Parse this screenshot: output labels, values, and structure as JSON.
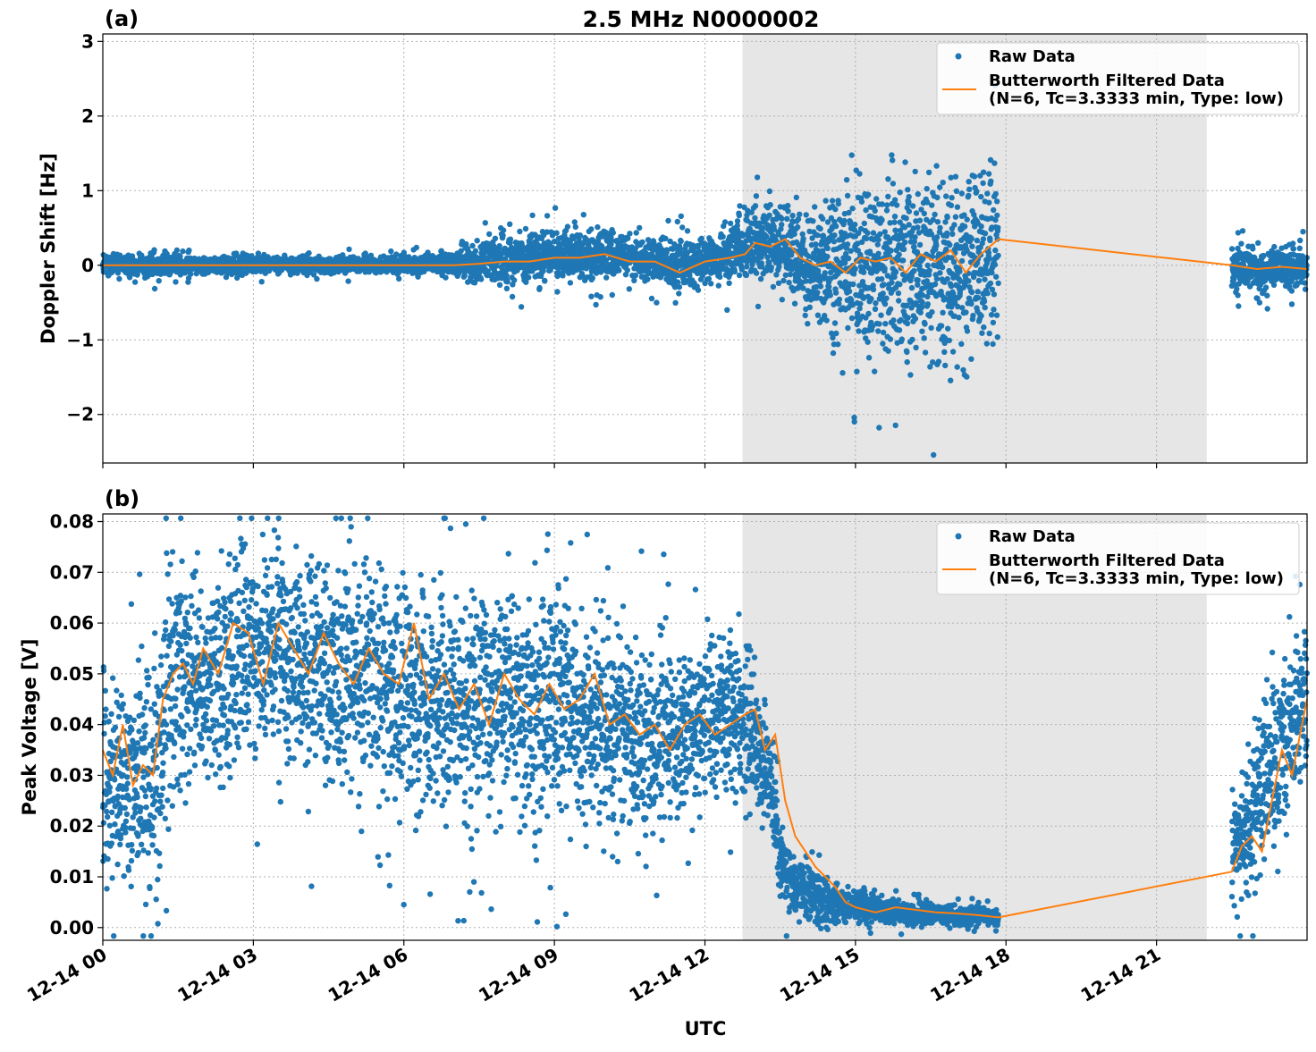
{
  "figure": {
    "title": "2.5 MHz N0000002",
    "xlabel": "UTC",
    "x_tick_labels": [
      "12-14 00",
      "12-14 03",
      "12-14 06",
      "12-14 09",
      "12-14 12",
      "12-14 15",
      "12-14 18",
      "12-14 21"
    ]
  },
  "legend": {
    "raw_label": "Raw Data",
    "filt_label_1": "Butterworth Filtered Data",
    "filt_label_2": "(N=6, Tc=3.3333 min, Type: low)"
  },
  "colors": {
    "raw": "#1f77b4",
    "filtered": "#ff7f0e",
    "shade": "#e6e6e6",
    "grid": "#b0b0b0"
  },
  "chart_data": [
    {
      "panel_label": "(a)",
      "type": "scatter",
      "title": "2.5 MHz N0000002",
      "ylabel": "Doppler Shift [Hz]",
      "y_ticks": [
        -2,
        -1,
        0,
        1,
        2,
        3
      ],
      "y_tick_labels": [
        "−2",
        "−1",
        "0",
        "1",
        "2",
        "3"
      ],
      "xlim_hours": [
        0,
        24
      ],
      "ylim": [
        -2.65,
        3.1
      ],
      "shaded_region_hours": [
        12.75,
        22.0
      ],
      "series": [
        {
          "name": "Raw Data",
          "style": "points",
          "x_hours": [
            0.0,
            0.5,
            1.0,
            1.5,
            2.0,
            2.5,
            3.0,
            3.5,
            4.0,
            4.5,
            5.0,
            5.5,
            6.0,
            6.5,
            7.0,
            7.5,
            8.0,
            8.5,
            9.0,
            9.5,
            10.0,
            10.5,
            11.0,
            11.5,
            12.0,
            12.5,
            13.0,
            13.5,
            14.0,
            14.5,
            15.0,
            15.5,
            16.0,
            16.5,
            17.0,
            17.5,
            17.85,
            22.5,
            23.0,
            23.5,
            24.0
          ],
          "y_center": [
            0.0,
            0.0,
            0.0,
            0.0,
            0.0,
            0.0,
            0.02,
            0.02,
            0.02,
            0.0,
            0.0,
            0.0,
            0.0,
            0.02,
            0.03,
            0.04,
            0.1,
            0.1,
            0.12,
            0.15,
            0.15,
            0.1,
            0.06,
            0.0,
            0.05,
            0.15,
            0.3,
            0.3,
            0.0,
            0.0,
            0.05,
            0.0,
            0.0,
            0.05,
            0.05,
            0.1,
            0.1,
            -0.05,
            -0.05,
            -0.05,
            -0.05
          ],
          "y_spread": [
            0.15,
            0.12,
            0.15,
            0.12,
            0.1,
            0.12,
            0.12,
            0.1,
            0.1,
            0.1,
            0.1,
            0.1,
            0.1,
            0.12,
            0.15,
            0.25,
            0.3,
            0.3,
            0.3,
            0.35,
            0.3,
            0.25,
            0.25,
            0.3,
            0.25,
            0.35,
            0.45,
            0.45,
            0.6,
            0.8,
            1.0,
            1.0,
            1.1,
            1.2,
            1.2,
            1.2,
            1.1,
            0.25,
            0.25,
            0.25,
            0.25
          ]
        },
        {
          "name": "Butterworth Filtered Data",
          "style": "line",
          "x_hours": [
            0.0,
            1.0,
            2.0,
            3.0,
            4.0,
            5.0,
            6.0,
            7.0,
            7.5,
            8.0,
            8.5,
            9.0,
            9.5,
            10.0,
            10.5,
            11.0,
            11.5,
            12.0,
            12.5,
            12.8,
            13.0,
            13.3,
            13.6,
            13.9,
            14.2,
            14.5,
            14.8,
            15.1,
            15.4,
            15.7,
            16.0,
            16.3,
            16.6,
            16.9,
            17.2,
            17.5,
            17.85,
            22.5,
            23.0,
            23.5,
            24.0
          ],
          "y": [
            0.0,
            0.0,
            0.0,
            0.0,
            0.0,
            0.0,
            0.0,
            0.0,
            0.02,
            0.05,
            0.05,
            0.1,
            0.1,
            0.15,
            0.05,
            0.05,
            -0.1,
            0.05,
            0.1,
            0.15,
            0.3,
            0.25,
            0.35,
            0.1,
            0.0,
            0.05,
            -0.1,
            0.1,
            0.05,
            0.1,
            -0.1,
            0.15,
            0.05,
            0.2,
            -0.1,
            0.15,
            0.35,
            0.0,
            -0.05,
            -0.02,
            -0.05
          ]
        }
      ]
    },
    {
      "panel_label": "(b)",
      "type": "scatter",
      "title": "",
      "ylabel": "Peak Voltage [V]",
      "y_ticks": [
        0.0,
        0.01,
        0.02,
        0.03,
        0.04,
        0.05,
        0.06,
        0.07,
        0.08
      ],
      "y_tick_labels": [
        "0.00",
        "0.01",
        "0.02",
        "0.03",
        "0.04",
        "0.05",
        "0.06",
        "0.07",
        "0.08"
      ],
      "xlim_hours": [
        0,
        24
      ],
      "ylim": [
        -0.0025,
        0.0815
      ],
      "shaded_region_hours": [
        12.75,
        22.0
      ],
      "series": [
        {
          "name": "Raw Data",
          "style": "points",
          "x_hours": [
            0.0,
            0.5,
            1.0,
            1.3,
            1.5,
            2.0,
            2.5,
            3.0,
            3.5,
            4.0,
            4.5,
            5.0,
            5.5,
            6.0,
            6.5,
            7.0,
            7.5,
            8.0,
            8.5,
            9.0,
            9.5,
            10.0,
            10.5,
            11.0,
            11.5,
            12.0,
            12.5,
            12.8,
            13.0,
            13.3,
            13.5,
            13.8,
            14.2,
            14.5,
            14.8,
            15.2,
            16.0,
            16.5,
            17.0,
            17.5,
            17.85,
            22.5,
            22.8,
            23.2,
            23.6,
            24.0
          ],
          "y_center": [
            0.03,
            0.028,
            0.03,
            0.045,
            0.048,
            0.05,
            0.052,
            0.055,
            0.055,
            0.052,
            0.05,
            0.05,
            0.048,
            0.047,
            0.045,
            0.043,
            0.045,
            0.045,
            0.042,
            0.042,
            0.042,
            0.04,
            0.038,
            0.037,
            0.04,
            0.04,
            0.042,
            0.04,
            0.038,
            0.03,
            0.012,
            0.008,
            0.006,
            0.005,
            0.004,
            0.004,
            0.003,
            0.003,
            0.0025,
            0.0025,
            0.002,
            0.015,
            0.02,
            0.03,
            0.038,
            0.045
          ],
          "y_spread": [
            0.018,
            0.018,
            0.02,
            0.022,
            0.022,
            0.02,
            0.02,
            0.02,
            0.02,
            0.02,
            0.02,
            0.02,
            0.02,
            0.02,
            0.02,
            0.02,
            0.02,
            0.02,
            0.02,
            0.02,
            0.018,
            0.018,
            0.018,
            0.018,
            0.016,
            0.016,
            0.014,
            0.014,
            0.014,
            0.01,
            0.008,
            0.006,
            0.005,
            0.004,
            0.003,
            0.003,
            0.002,
            0.002,
            0.0015,
            0.0015,
            0.0012,
            0.01,
            0.012,
            0.015,
            0.016,
            0.015
          ]
        },
        {
          "name": "Butterworth Filtered Data",
          "style": "line",
          "x_hours": [
            0.0,
            0.2,
            0.4,
            0.6,
            0.8,
            1.0,
            1.2,
            1.4,
            1.6,
            1.8,
            2.0,
            2.3,
            2.6,
            2.9,
            3.2,
            3.5,
            3.8,
            4.1,
            4.4,
            4.7,
            5.0,
            5.3,
            5.6,
            5.9,
            6.2,
            6.5,
            6.8,
            7.1,
            7.4,
            7.7,
            8.0,
            8.3,
            8.6,
            8.9,
            9.2,
            9.5,
            9.8,
            10.1,
            10.4,
            10.7,
            11.0,
            11.3,
            11.6,
            11.9,
            12.2,
            12.5,
            12.8,
            13.0,
            13.2,
            13.4,
            13.6,
            13.8,
            14.0,
            14.2,
            14.4,
            14.6,
            14.8,
            15.0,
            15.4,
            15.8,
            16.2,
            16.6,
            17.0,
            17.4,
            17.85,
            22.5,
            22.7,
            22.9,
            23.1,
            23.3,
            23.5,
            23.7,
            23.9,
            24.0
          ],
          "y": [
            0.035,
            0.03,
            0.04,
            0.028,
            0.032,
            0.03,
            0.045,
            0.05,
            0.052,
            0.048,
            0.055,
            0.05,
            0.06,
            0.058,
            0.048,
            0.06,
            0.055,
            0.05,
            0.058,
            0.052,
            0.048,
            0.055,
            0.05,
            0.048,
            0.06,
            0.045,
            0.05,
            0.043,
            0.048,
            0.04,
            0.05,
            0.045,
            0.042,
            0.048,
            0.043,
            0.045,
            0.05,
            0.04,
            0.042,
            0.038,
            0.04,
            0.035,
            0.04,
            0.042,
            0.038,
            0.04,
            0.042,
            0.043,
            0.035,
            0.038,
            0.025,
            0.018,
            0.015,
            0.012,
            0.01,
            0.008,
            0.005,
            0.004,
            0.003,
            0.004,
            0.0035,
            0.003,
            0.0028,
            0.0025,
            0.002,
            0.011,
            0.016,
            0.018,
            0.015,
            0.025,
            0.035,
            0.03,
            0.04,
            0.045
          ]
        }
      ]
    }
  ]
}
